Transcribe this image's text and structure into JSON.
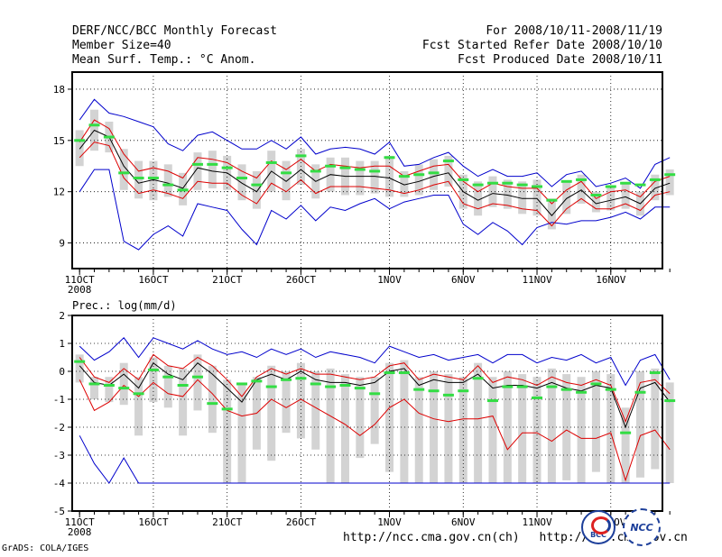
{
  "header": {
    "title": "DERF/NCC/BCC Monthly Forecast",
    "member_size": "Member Size=40",
    "variable": "Mean Surf. Temp.: °C Anom.",
    "period": "For 2008/10/11-2008/11/19",
    "refer_date": "Fcst Started Refer Date 2008/10/10",
    "produced_date": "Fcst Produced Date 2008/10/11"
  },
  "footer": {
    "grads": "GrADS: COLA/IGES",
    "url_ncc": "http://ncc.cma.gov.cn(ch)",
    "url_bcc": "http://bcc.cma.gov.cn",
    "logo_bcc": "BCC",
    "logo_ncc": "NCC"
  },
  "colors": {
    "blue": "#0000cc",
    "red": "#dd0000",
    "black": "#000000",
    "green": "#33dd44",
    "gray": "#d3d3d3"
  },
  "chart_data": [
    {
      "type": "line",
      "title": "",
      "ylabel": "",
      "xlabel": "",
      "ylim": [
        7.5,
        19
      ],
      "yticks": [
        9,
        12,
        15,
        18
      ],
      "xlim": [
        0.5,
        40.5
      ],
      "x_ticks": [
        {
          "day": 1,
          "label": "11OCT",
          "sub": "2008"
        },
        {
          "day": 6,
          "label": "16OCT",
          "sub": ""
        },
        {
          "day": 11,
          "label": "21OCT",
          "sub": ""
        },
        {
          "day": 16,
          "label": "26OCT",
          "sub": ""
        },
        {
          "day": 22,
          "label": "1NOV",
          "sub": ""
        },
        {
          "day": 27,
          "label": "6NOV",
          "sub": ""
        },
        {
          "day": 32,
          "label": "11NOV",
          "sub": ""
        },
        {
          "day": 37,
          "label": "16NOV",
          "sub": ""
        }
      ],
      "grid": true,
      "series": [
        {
          "name": "max",
          "color": "blue",
          "values": [
            16.2,
            17.4,
            16.6,
            16.4,
            16.1,
            15.8,
            14.8,
            14.4,
            15.3,
            15.5,
            15.0,
            14.5,
            14.5,
            15.0,
            14.5,
            15.2,
            14.2,
            14.5,
            14.6,
            14.5,
            14.2,
            14.9,
            13.5,
            13.6,
            14.0,
            14.3,
            13.5,
            12.9,
            13.3,
            12.9,
            12.9,
            13.1,
            12.3,
            13.0,
            13.2,
            12.3,
            12.5,
            12.8,
            12.2,
            13.6,
            14.0
          ]
        },
        {
          "name": "min",
          "color": "blue",
          "values": [
            12.0,
            13.3,
            13.3,
            9.1,
            8.6,
            9.5,
            10.0,
            9.4,
            11.3,
            11.1,
            10.9,
            9.8,
            8.9,
            10.9,
            10.4,
            11.2,
            10.3,
            11.1,
            10.9,
            11.3,
            11.6,
            11.0,
            11.4,
            11.6,
            11.8,
            11.8,
            10.1,
            9.5,
            10.2,
            9.7,
            8.9,
            9.9,
            10.2,
            10.1,
            10.3,
            10.3,
            10.5,
            10.8,
            10.4,
            11.1,
            11.1
          ]
        },
        {
          "name": "upper",
          "color": "red",
          "values": [
            14.9,
            16.2,
            15.7,
            14.2,
            13.2,
            13.4,
            13.2,
            12.8,
            14.0,
            13.9,
            13.7,
            13.2,
            12.8,
            13.8,
            13.3,
            13.9,
            13.2,
            13.6,
            13.5,
            13.4,
            13.5,
            13.5,
            12.9,
            13.2,
            13.5,
            13.6,
            12.6,
            12.0,
            12.5,
            12.3,
            12.2,
            12.2,
            11.3,
            12.1,
            12.6,
            11.6,
            12.0,
            12.1,
            11.7,
            12.6,
            12.9
          ]
        },
        {
          "name": "lower",
          "color": "red",
          "values": [
            14.0,
            14.9,
            14.7,
            12.8,
            11.9,
            12.1,
            11.9,
            11.6,
            12.6,
            12.5,
            12.5,
            11.8,
            11.3,
            12.5,
            12.0,
            12.7,
            11.9,
            12.3,
            12.3,
            12.3,
            12.2,
            12.1,
            11.9,
            12.1,
            12.4,
            12.6,
            11.3,
            11.0,
            11.3,
            11.2,
            11.0,
            10.9,
            10.0,
            11.0,
            11.6,
            11.0,
            11.0,
            11.3,
            10.9,
            11.8,
            12.0
          ]
        },
        {
          "name": "mean",
          "color": "black",
          "values": [
            14.5,
            15.6,
            15.2,
            13.5,
            12.5,
            12.7,
            12.5,
            12.2,
            13.4,
            13.2,
            13.1,
            12.5,
            12.0,
            13.2,
            12.6,
            13.3,
            12.6,
            13.0,
            12.9,
            12.9,
            12.9,
            12.8,
            12.4,
            12.6,
            12.9,
            13.1,
            12.0,
            11.5,
            11.9,
            11.8,
            11.6,
            11.6,
            10.6,
            11.6,
            12.1,
            11.3,
            11.5,
            11.7,
            11.3,
            12.2,
            12.5
          ]
        },
        {
          "name": "box_high",
          "color": "gray",
          "values": [
            15.6,
            16.8,
            16.1,
            14.5,
            13.8,
            13.8,
            13.6,
            13.1,
            14.3,
            14.4,
            14.1,
            13.6,
            13.2,
            14.4,
            13.8,
            14.5,
            13.6,
            14.0,
            14.0,
            13.8,
            13.8,
            14.1,
            13.2,
            13.6,
            13.9,
            14.1,
            13.0,
            12.6,
            12.9,
            12.7,
            12.6,
            12.7,
            11.6,
            12.6,
            13.0,
            12.0,
            12.3,
            12.5,
            12.0,
            13.0,
            13.3
          ]
        },
        {
          "name": "box_low",
          "color": "gray",
          "values": [
            13.5,
            14.4,
            14.3,
            12.1,
            11.6,
            11.5,
            11.7,
            11.2,
            12.1,
            12.2,
            12.1,
            11.5,
            11.0,
            12.0,
            11.5,
            12.4,
            11.6,
            12.0,
            11.8,
            11.8,
            11.9,
            11.7,
            11.7,
            11.8,
            12.1,
            12.3,
            11.0,
            10.6,
            11.1,
            11.0,
            10.7,
            10.6,
            9.8,
            10.7,
            11.3,
            10.8,
            10.9,
            11.0,
            10.6,
            11.5,
            11.8
          ]
        },
        {
          "name": "control",
          "color": "green",
          "values": [
            15.0,
            15.9,
            15.2,
            13.1,
            12.8,
            12.8,
            12.4,
            12.1,
            13.6,
            13.6,
            13.4,
            12.8,
            12.4,
            13.7,
            13.1,
            14.1,
            13.2,
            13.5,
            13.4,
            13.3,
            13.2,
            14.0,
            12.9,
            13.0,
            13.1,
            13.8,
            12.7,
            12.4,
            12.5,
            12.5,
            12.4,
            12.3,
            11.5,
            12.6,
            12.7,
            11.8,
            12.3,
            12.5,
            12.4,
            12.7,
            13.0
          ]
        }
      ]
    },
    {
      "type": "line",
      "title": "Prec.: log(mm/d)",
      "ylabel": "",
      "xlabel": "",
      "ylim": [
        -5,
        2
      ],
      "yticks": [
        -5,
        -4,
        -3,
        -2,
        -1,
        0,
        1,
        2
      ],
      "xlim": [
        0.5,
        40.5
      ],
      "x_ticks": [
        {
          "day": 1,
          "label": "11OCT",
          "sub": "2008"
        },
        {
          "day": 6,
          "label": "16OCT",
          "sub": ""
        },
        {
          "day": 11,
          "label": "21OCT",
          "sub": ""
        },
        {
          "day": 16,
          "label": "26OCT",
          "sub": ""
        },
        {
          "day": 22,
          "label": "1NOV",
          "sub": ""
        },
        {
          "day": 27,
          "label": "6NOV",
          "sub": ""
        },
        {
          "day": 32,
          "label": "11NOV",
          "sub": ""
        },
        {
          "day": 37,
          "label": "16NOV",
          "sub": ""
        }
      ],
      "grid": true,
      "series": [
        {
          "name": "max",
          "color": "blue",
          "values": [
            0.9,
            0.4,
            0.7,
            1.2,
            0.5,
            1.2,
            1.0,
            0.8,
            1.1,
            0.8,
            0.6,
            0.7,
            0.5,
            0.8,
            0.6,
            0.8,
            0.5,
            0.7,
            0.6,
            0.5,
            0.3,
            0.9,
            0.7,
            0.5,
            0.6,
            0.4,
            0.5,
            0.6,
            0.3,
            0.6,
            0.6,
            0.3,
            0.5,
            0.4,
            0.6,
            0.3,
            0.5,
            -0.5,
            0.4,
            0.6,
            -0.3
          ]
        },
        {
          "name": "min",
          "color": "blue",
          "values": [
            -2.3,
            -3.3,
            -4.0,
            -3.1,
            -4.0,
            -4.0,
            -4.0,
            -4.0,
            -4.0,
            -4.0,
            -4.0,
            -4.0,
            -4.0,
            -4.0,
            -4.0,
            -4.0,
            -4.0,
            -4.0,
            -4.0,
            -4.0,
            -4.0,
            -4.0,
            -4.0,
            -4.0,
            -4.0,
            -4.0,
            -4.0,
            -4.0,
            -4.0,
            -4.0,
            -4.0,
            -4.0,
            -4.0,
            -4.0,
            -4.0,
            -4.0,
            -4.0,
            -4.0,
            -4.0,
            -4.0,
            -4.0
          ]
        },
        {
          "name": "upper",
          "color": "red",
          "values": [
            0.5,
            -0.2,
            -0.4,
            0.1,
            -0.3,
            0.6,
            0.2,
            0.1,
            0.5,
            0.2,
            -0.3,
            -0.9,
            -0.2,
            0.1,
            -0.1,
            0.1,
            -0.1,
            -0.1,
            -0.2,
            -0.3,
            -0.2,
            0.2,
            0.3,
            -0.3,
            -0.1,
            -0.2,
            -0.3,
            0.2,
            -0.4,
            -0.2,
            -0.3,
            -0.5,
            -0.2,
            -0.4,
            -0.5,
            -0.3,
            -0.5,
            -1.8,
            -0.4,
            -0.3,
            -0.8
          ]
        },
        {
          "name": "lower",
          "color": "red",
          "values": [
            -0.3,
            -1.4,
            -1.1,
            -0.5,
            -0.9,
            -0.4,
            -0.8,
            -0.9,
            -0.3,
            -0.8,
            -1.4,
            -1.6,
            -1.5,
            -1.0,
            -1.3,
            -1.0,
            -1.3,
            -1.6,
            -1.9,
            -2.3,
            -1.9,
            -1.3,
            -1.0,
            -1.5,
            -1.7,
            -1.8,
            -1.7,
            -1.7,
            -1.6,
            -2.8,
            -2.2,
            -2.2,
            -2.5,
            -2.1,
            -2.4,
            -2.4,
            -2.2,
            -3.9,
            -2.3,
            -2.1,
            -2.8
          ]
        },
        {
          "name": "mean",
          "color": "black",
          "values": [
            0.2,
            -0.4,
            -0.5,
            -0.1,
            -0.6,
            0.3,
            -0.1,
            -0.3,
            0.3,
            -0.1,
            -0.6,
            -1.1,
            -0.3,
            -0.1,
            -0.3,
            0.0,
            -0.3,
            -0.4,
            -0.4,
            -0.5,
            -0.4,
            0.0,
            0.1,
            -0.5,
            -0.3,
            -0.4,
            -0.4,
            -0.1,
            -0.6,
            -0.5,
            -0.5,
            -0.6,
            -0.4,
            -0.6,
            -0.7,
            -0.5,
            -0.6,
            -2.0,
            -0.6,
            -0.4,
            -1.1
          ]
        },
        {
          "name": "box_high",
          "color": "gray",
          "values": [
            0.6,
            -0.2,
            -0.2,
            0.3,
            -0.2,
            0.5,
            0.2,
            0.1,
            0.6,
            0.2,
            -0.3,
            -0.4,
            -0.2,
            0.2,
            0.0,
            0.3,
            0.0,
            0.1,
            -0.1,
            -0.2,
            -0.2,
            0.3,
            0.4,
            -0.2,
            0.0,
            -0.1,
            -0.2,
            0.3,
            -0.2,
            0.0,
            -0.1,
            -0.2,
            0.1,
            -0.1,
            -0.2,
            0.0,
            -0.1,
            -1.3,
            0.0,
            0.1,
            -0.4
          ]
        },
        {
          "name": "box_low",
          "color": "gray",
          "values": [
            -0.4,
            -1.0,
            -1.1,
            -1.2,
            -2.3,
            -1.1,
            -1.3,
            -2.3,
            -1.4,
            -2.2,
            -4.0,
            -4.0,
            -2.8,
            -3.2,
            -2.2,
            -2.4,
            -2.8,
            -4.0,
            -4.0,
            -3.1,
            -2.6,
            -3.6,
            -4.0,
            -4.0,
            -4.0,
            -4.0,
            -4.0,
            -4.0,
            -4.0,
            -4.0,
            -4.0,
            -4.0,
            -4.0,
            -3.9,
            -4.0,
            -3.6,
            -4.0,
            -4.0,
            -3.8,
            -3.5,
            -4.0
          ]
        },
        {
          "name": "control",
          "color": "green",
          "values": [
            0.35,
            -0.45,
            -0.5,
            -0.6,
            -0.8,
            0.05,
            -0.2,
            -0.5,
            -0.2,
            -1.15,
            -1.35,
            -0.45,
            -0.35,
            -0.55,
            -0.3,
            -0.25,
            -0.45,
            -0.55,
            -0.5,
            -0.6,
            -0.8,
            -0.05,
            -0.05,
            -0.65,
            -0.7,
            -0.85,
            -0.7,
            -0.25,
            -1.05,
            -0.55,
            -0.55,
            -0.95,
            -0.55,
            -0.65,
            -0.75,
            -0.45,
            -0.65,
            -2.2,
            -0.75,
            -0.05,
            -1.05
          ]
        }
      ]
    }
  ]
}
